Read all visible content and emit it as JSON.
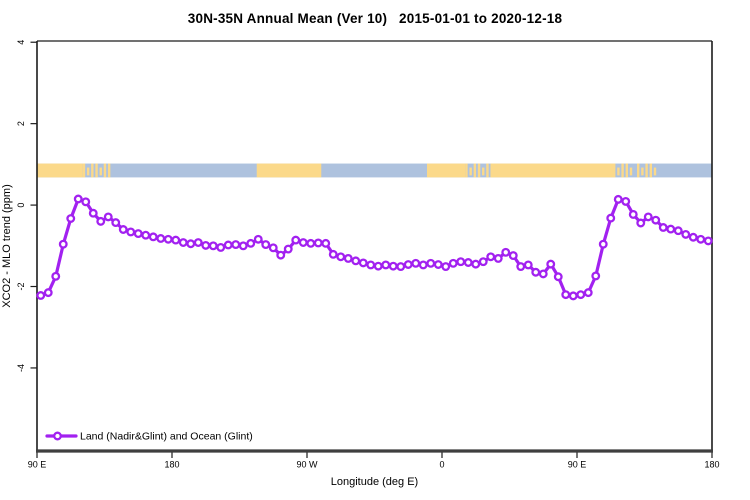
{
  "page": {
    "background": "#ffffff"
  },
  "chart_data": {
    "type": "line",
    "title": "30N-35N Annual Mean (Ver 10)   2015-01-01 to 2020-12-18",
    "xlabel": "Longitude (deg E)",
    "ylabel": "XCO2 - MLO trend (ppm)",
    "xlim": [
      90,
      540
    ],
    "ylim": [
      -6.04,
      4.03
    ],
    "grid": false,
    "legend": {
      "label": "Land (Nadir&Glint) and Ocean (Glint)",
      "position": "bottom-left",
      "marker": "open-circle"
    },
    "x_ticks": [
      {
        "lon": 90,
        "label": "90 E"
      },
      {
        "lon": 180,
        "label": "180"
      },
      {
        "lon": 270,
        "label": "90 W"
      },
      {
        "lon": 360,
        "label": "0"
      },
      {
        "lon": 450,
        "label": "90 E"
      },
      {
        "lon": 540,
        "label": "180"
      }
    ],
    "y_ticks": [
      {
        "value": 4,
        "label": "4"
      },
      {
        "value": 2,
        "label": "2"
      },
      {
        "value": 0,
        "label": "0"
      },
      {
        "value": -2,
        "label": "-2"
      },
      {
        "value": -4,
        "label": "-4"
      }
    ],
    "x": [
      92.5,
      97.5,
      102.5,
      107.5,
      112.5,
      117.5,
      122.5,
      127.5,
      132.5,
      137.5,
      142.5,
      147.5,
      152.5,
      157.5,
      162.5,
      167.5,
      172.5,
      177.5,
      182.5,
      187.5,
      192.5,
      197.5,
      202.5,
      207.5,
      212.5,
      217.5,
      222.5,
      227.5,
      232.5,
      237.5,
      242.5,
      247.5,
      252.5,
      257.5,
      262.5,
      267.5,
      272.5,
      277.5,
      282.5,
      287.5,
      292.5,
      297.5,
      302.5,
      307.5,
      312.5,
      317.5,
      322.5,
      327.5,
      332.5,
      337.5,
      342.5,
      347.5,
      352.5,
      357.5,
      362.5,
      367.5,
      372.5,
      377.5,
      382.5,
      387.5,
      392.5,
      397.5,
      402.5,
      407.5,
      412.5,
      417.5,
      422.5,
      427.5,
      432.5,
      437.5,
      442.5,
      447.5,
      452.5,
      457.5,
      462.5,
      467.5,
      472.5,
      477.5,
      482.5,
      487.5,
      492.5,
      497.5,
      502.5,
      507.5,
      512.5,
      517.5,
      522.5,
      527.5,
      532.5,
      537.5
    ],
    "series": [
      {
        "name": "Land (Nadir&Glint) and Ocean (Glint)",
        "color": "#A221F0",
        "marker": "open-circle",
        "values": [
          -2.22,
          -2.15,
          -1.75,
          -0.96,
          -0.33,
          0.15,
          0.08,
          -0.2,
          -0.4,
          -0.29,
          -0.43,
          -0.6,
          -0.66,
          -0.7,
          -0.74,
          -0.78,
          -0.82,
          -0.84,
          -0.86,
          -0.92,
          -0.95,
          -0.92,
          -0.99,
          -1.0,
          -1.04,
          -0.98,
          -0.97,
          -1.0,
          -0.94,
          -0.84,
          -0.97,
          -1.05,
          -1.23,
          -1.08,
          -0.86,
          -0.92,
          -0.94,
          -0.93,
          -0.94,
          -1.21,
          -1.27,
          -1.31,
          -1.37,
          -1.42,
          -1.47,
          -1.5,
          -1.47,
          -1.5,
          -1.51,
          -1.46,
          -1.43,
          -1.47,
          -1.43,
          -1.46,
          -1.51,
          -1.43,
          -1.39,
          -1.41,
          -1.45,
          -1.39,
          -1.27,
          -1.31,
          -1.16,
          -1.24,
          -1.51,
          -1.47,
          -1.65,
          -1.69,
          -1.45,
          -1.76,
          -2.2,
          -2.23,
          -2.2,
          -2.15,
          -1.74,
          -0.96,
          -0.32,
          0.14,
          0.09,
          -0.23,
          -0.44,
          -0.29,
          -0.37,
          -0.55,
          -0.59,
          -0.63,
          -0.72,
          -0.79,
          -0.84,
          -0.88
        ]
      }
    ],
    "land_ocean_band": {
      "y_range": [
        0.68,
        1.02
      ],
      "land_color": "#FBD98A",
      "ocean_color": "#AEC2DE",
      "segments": [
        {
          "from": 90,
          "to": 120.5,
          "type": "land"
        },
        {
          "from": 120.5,
          "to": 140,
          "type": "mixed"
        },
        {
          "from": 140,
          "to": 236.5,
          "type": "ocean"
        },
        {
          "from": 236.5,
          "to": 279.5,
          "type": "land"
        },
        {
          "from": 279.5,
          "to": 350,
          "type": "ocean"
        },
        {
          "from": 350,
          "to": 375.5,
          "type": "land"
        },
        {
          "from": 375.5,
          "to": 393,
          "type": "mixed"
        },
        {
          "from": 393,
          "to": 474,
          "type": "land"
        },
        {
          "from": 474,
          "to": 487,
          "type": "mixed"
        },
        {
          "from": 487,
          "to": 490,
          "type": "ocean"
        },
        {
          "from": 490,
          "to": 503.5,
          "type": "mixed"
        },
        {
          "from": 503.5,
          "to": 540,
          "type": "ocean"
        }
      ]
    },
    "colors": {
      "line": "#A221F0",
      "box": "#1c1c1c",
      "bottom_axis": "#3f3f3f",
      "text": "#000000"
    }
  }
}
